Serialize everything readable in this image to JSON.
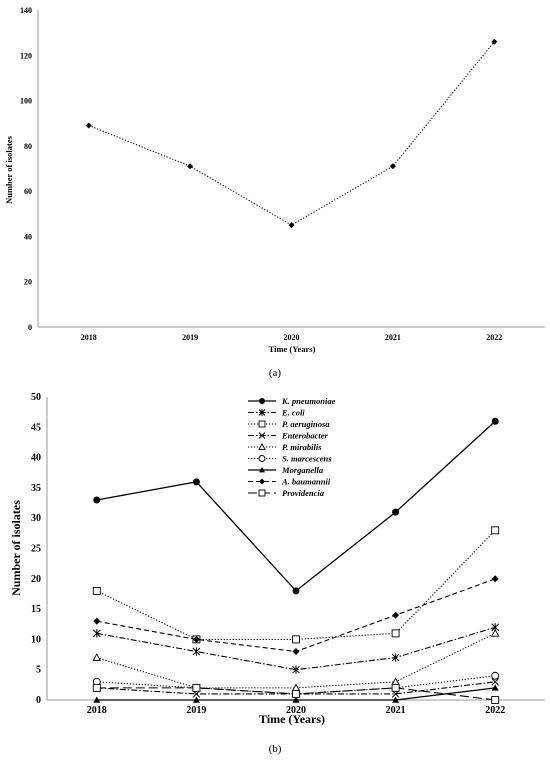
{
  "chart_data": [
    {
      "type": "line",
      "caption": "(a)",
      "x": [
        "2018",
        "2019",
        "2020",
        "2021",
        "2022"
      ],
      "series": [
        {
          "values": [
            89,
            71,
            45,
            71,
            126
          ],
          "color": "#000000",
          "marker": "diamond",
          "dash": "dotted"
        }
      ],
      "xlabel": "Time (Years)",
      "ylabel": "Number of isolates",
      "ylim": [
        0,
        140
      ],
      "yticks": [
        0,
        20,
        40,
        60,
        80,
        100,
        120,
        140
      ],
      "grid": false
    },
    {
      "type": "line",
      "caption": "(b)",
      "x": [
        "2018",
        "2019",
        "2020",
        "2021",
        "2022"
      ],
      "series": [
        {
          "name": "K. pneumoniae",
          "values": [
            33,
            36,
            18,
            31,
            46
          ],
          "marker": "circle-filled",
          "dash": "solid"
        },
        {
          "name": "E. coli",
          "values": [
            11,
            8,
            5,
            7,
            12
          ],
          "marker": "asterisk",
          "dash": "dashdot"
        },
        {
          "name": "P. aeruginosa",
          "values": [
            18,
            10,
            10,
            11,
            28
          ],
          "marker": "square-open",
          "dash": "dotted"
        },
        {
          "name": "Enterobacter",
          "values": [
            2,
            1,
            1,
            1,
            3
          ],
          "marker": "x",
          "dash": "dashdot"
        },
        {
          "name": "P. mirabilis",
          "values": [
            7,
            2,
            2,
            3,
            11
          ],
          "marker": "triangle-open",
          "dash": "dotted"
        },
        {
          "name": "S. marcescens",
          "values": [
            3,
            2,
            1,
            2,
            4
          ],
          "marker": "circle-open",
          "dash": "dotted"
        },
        {
          "name": "Morganella",
          "values": [
            0,
            0,
            0,
            0,
            2
          ],
          "marker": "triangle-filled",
          "dash": "solid"
        },
        {
          "name": "A. baumannii",
          "values": [
            13,
            10,
            8,
            14,
            20
          ],
          "marker": "diamond",
          "dash": "dashed"
        },
        {
          "name": "Providencia",
          "values": [
            2,
            2,
            1,
            2,
            0
          ],
          "marker": "square-open",
          "dash": "longdash"
        }
      ],
      "xlabel": "Time (Years)",
      "ylabel": "Number of isolates",
      "ylim": [
        0,
        50
      ],
      "yticks": [
        0,
        5,
        10,
        15,
        20,
        25,
        30,
        35,
        40,
        45,
        50
      ],
      "legend": "top-center",
      "grid": false
    }
  ]
}
